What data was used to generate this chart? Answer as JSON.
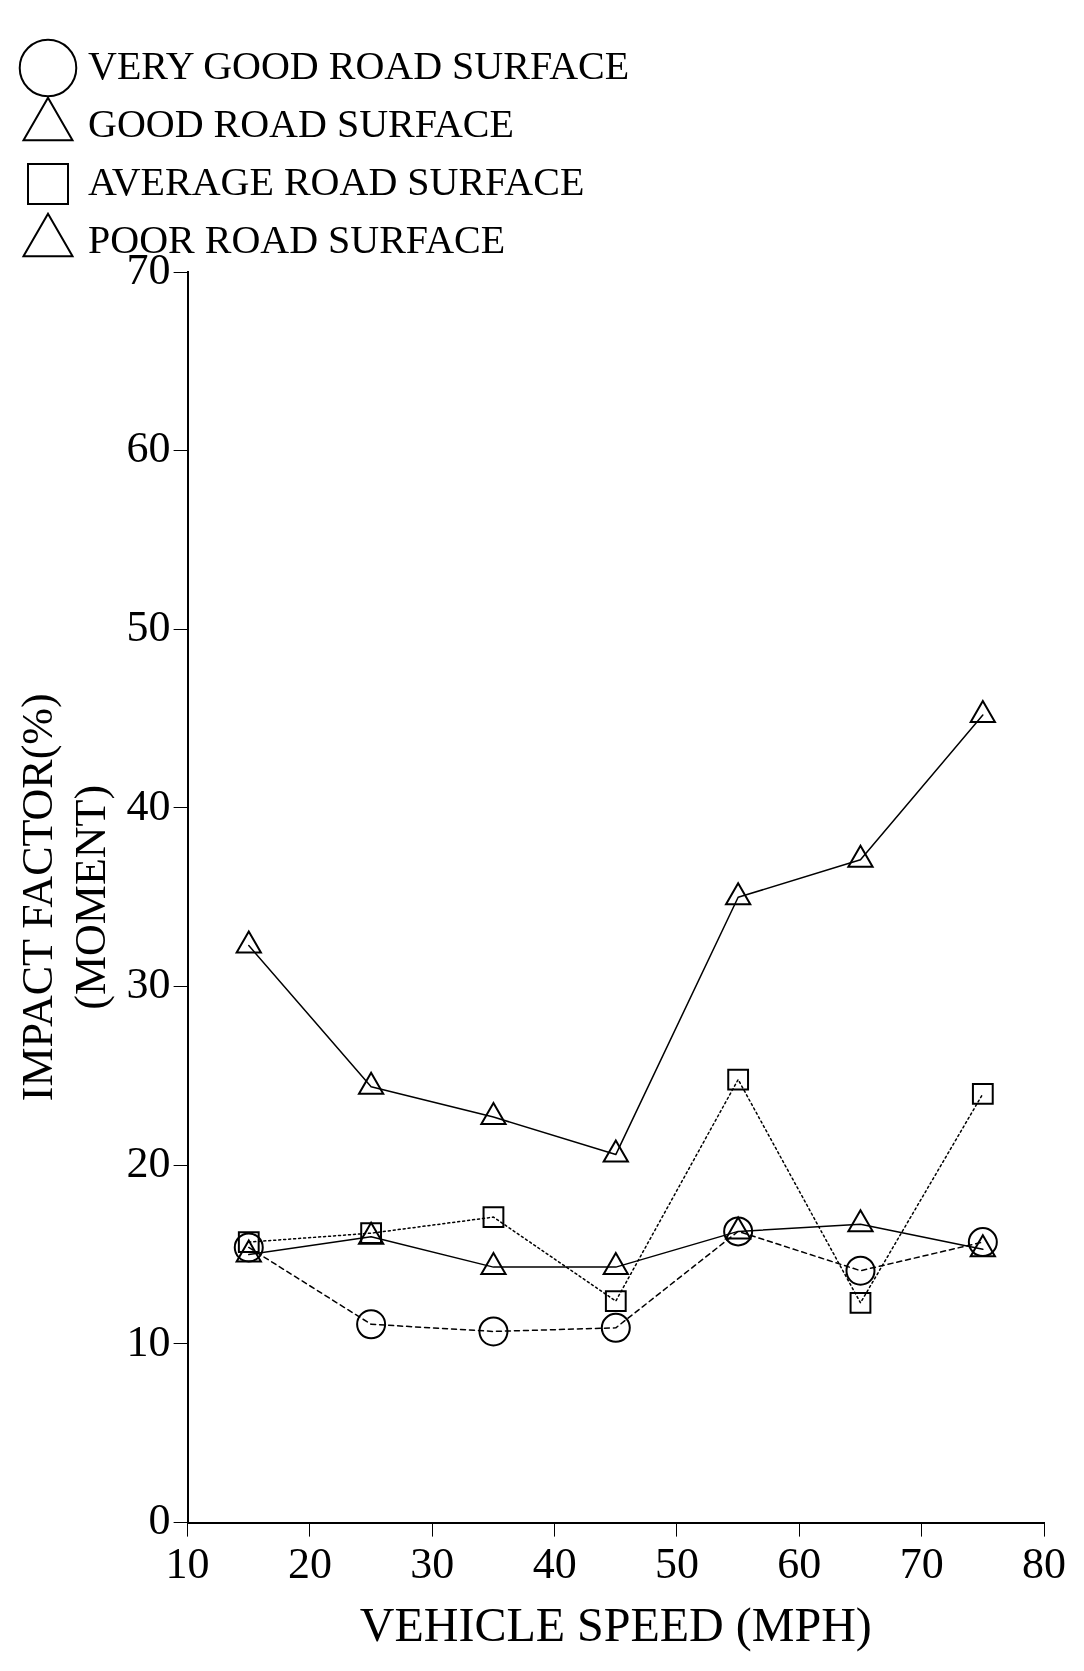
{
  "chart_data": {
    "type": "line",
    "xlabel": "VEHICLE SPEED (MPH)",
    "ylabel": "IMPACT FACTOR(%)\n(MOMENT)",
    "x": [
      15,
      25,
      35,
      45,
      55,
      65,
      75
    ],
    "series": [
      {
        "name": "VERY GOOD ROAD SURFACE",
        "color": "#000000",
        "marker": "circle",
        "line_style": "dashed",
        "values": [
          15.4,
          11.1,
          10.7,
          10.9,
          16.3,
          14.1,
          15.7
        ]
      },
      {
        "name": "GOOD ROAD SURFACE",
        "color": "#000000",
        "marker": "triangle",
        "line_style": "solid",
        "values": [
          15.0,
          16.0,
          14.3,
          14.3,
          16.3,
          16.7,
          15.3
        ]
      },
      {
        "name": "AVERAGE ROAD SURFACE",
        "color": "#000000",
        "marker": "square",
        "line_style": "dotted",
        "values": [
          15.7,
          16.2,
          17.1,
          12.4,
          24.8,
          12.3,
          24.0
        ]
      },
      {
        "name": "POOR ROAD SURFACE",
        "color": "#000000",
        "marker": "triangle",
        "line_style": "solid",
        "values": [
          32.3,
          24.4,
          22.7,
          20.6,
          35.0,
          37.1,
          45.2
        ]
      }
    ],
    "xlim": [
      10,
      80
    ],
    "xticks": [
      10,
      20,
      30,
      40,
      50,
      60,
      70,
      80
    ],
    "ylim": [
      0,
      70
    ],
    "yticks": [
      0,
      10,
      20,
      30,
      40,
      50,
      60,
      70
    ],
    "grid": false,
    "legend": "top left"
  }
}
